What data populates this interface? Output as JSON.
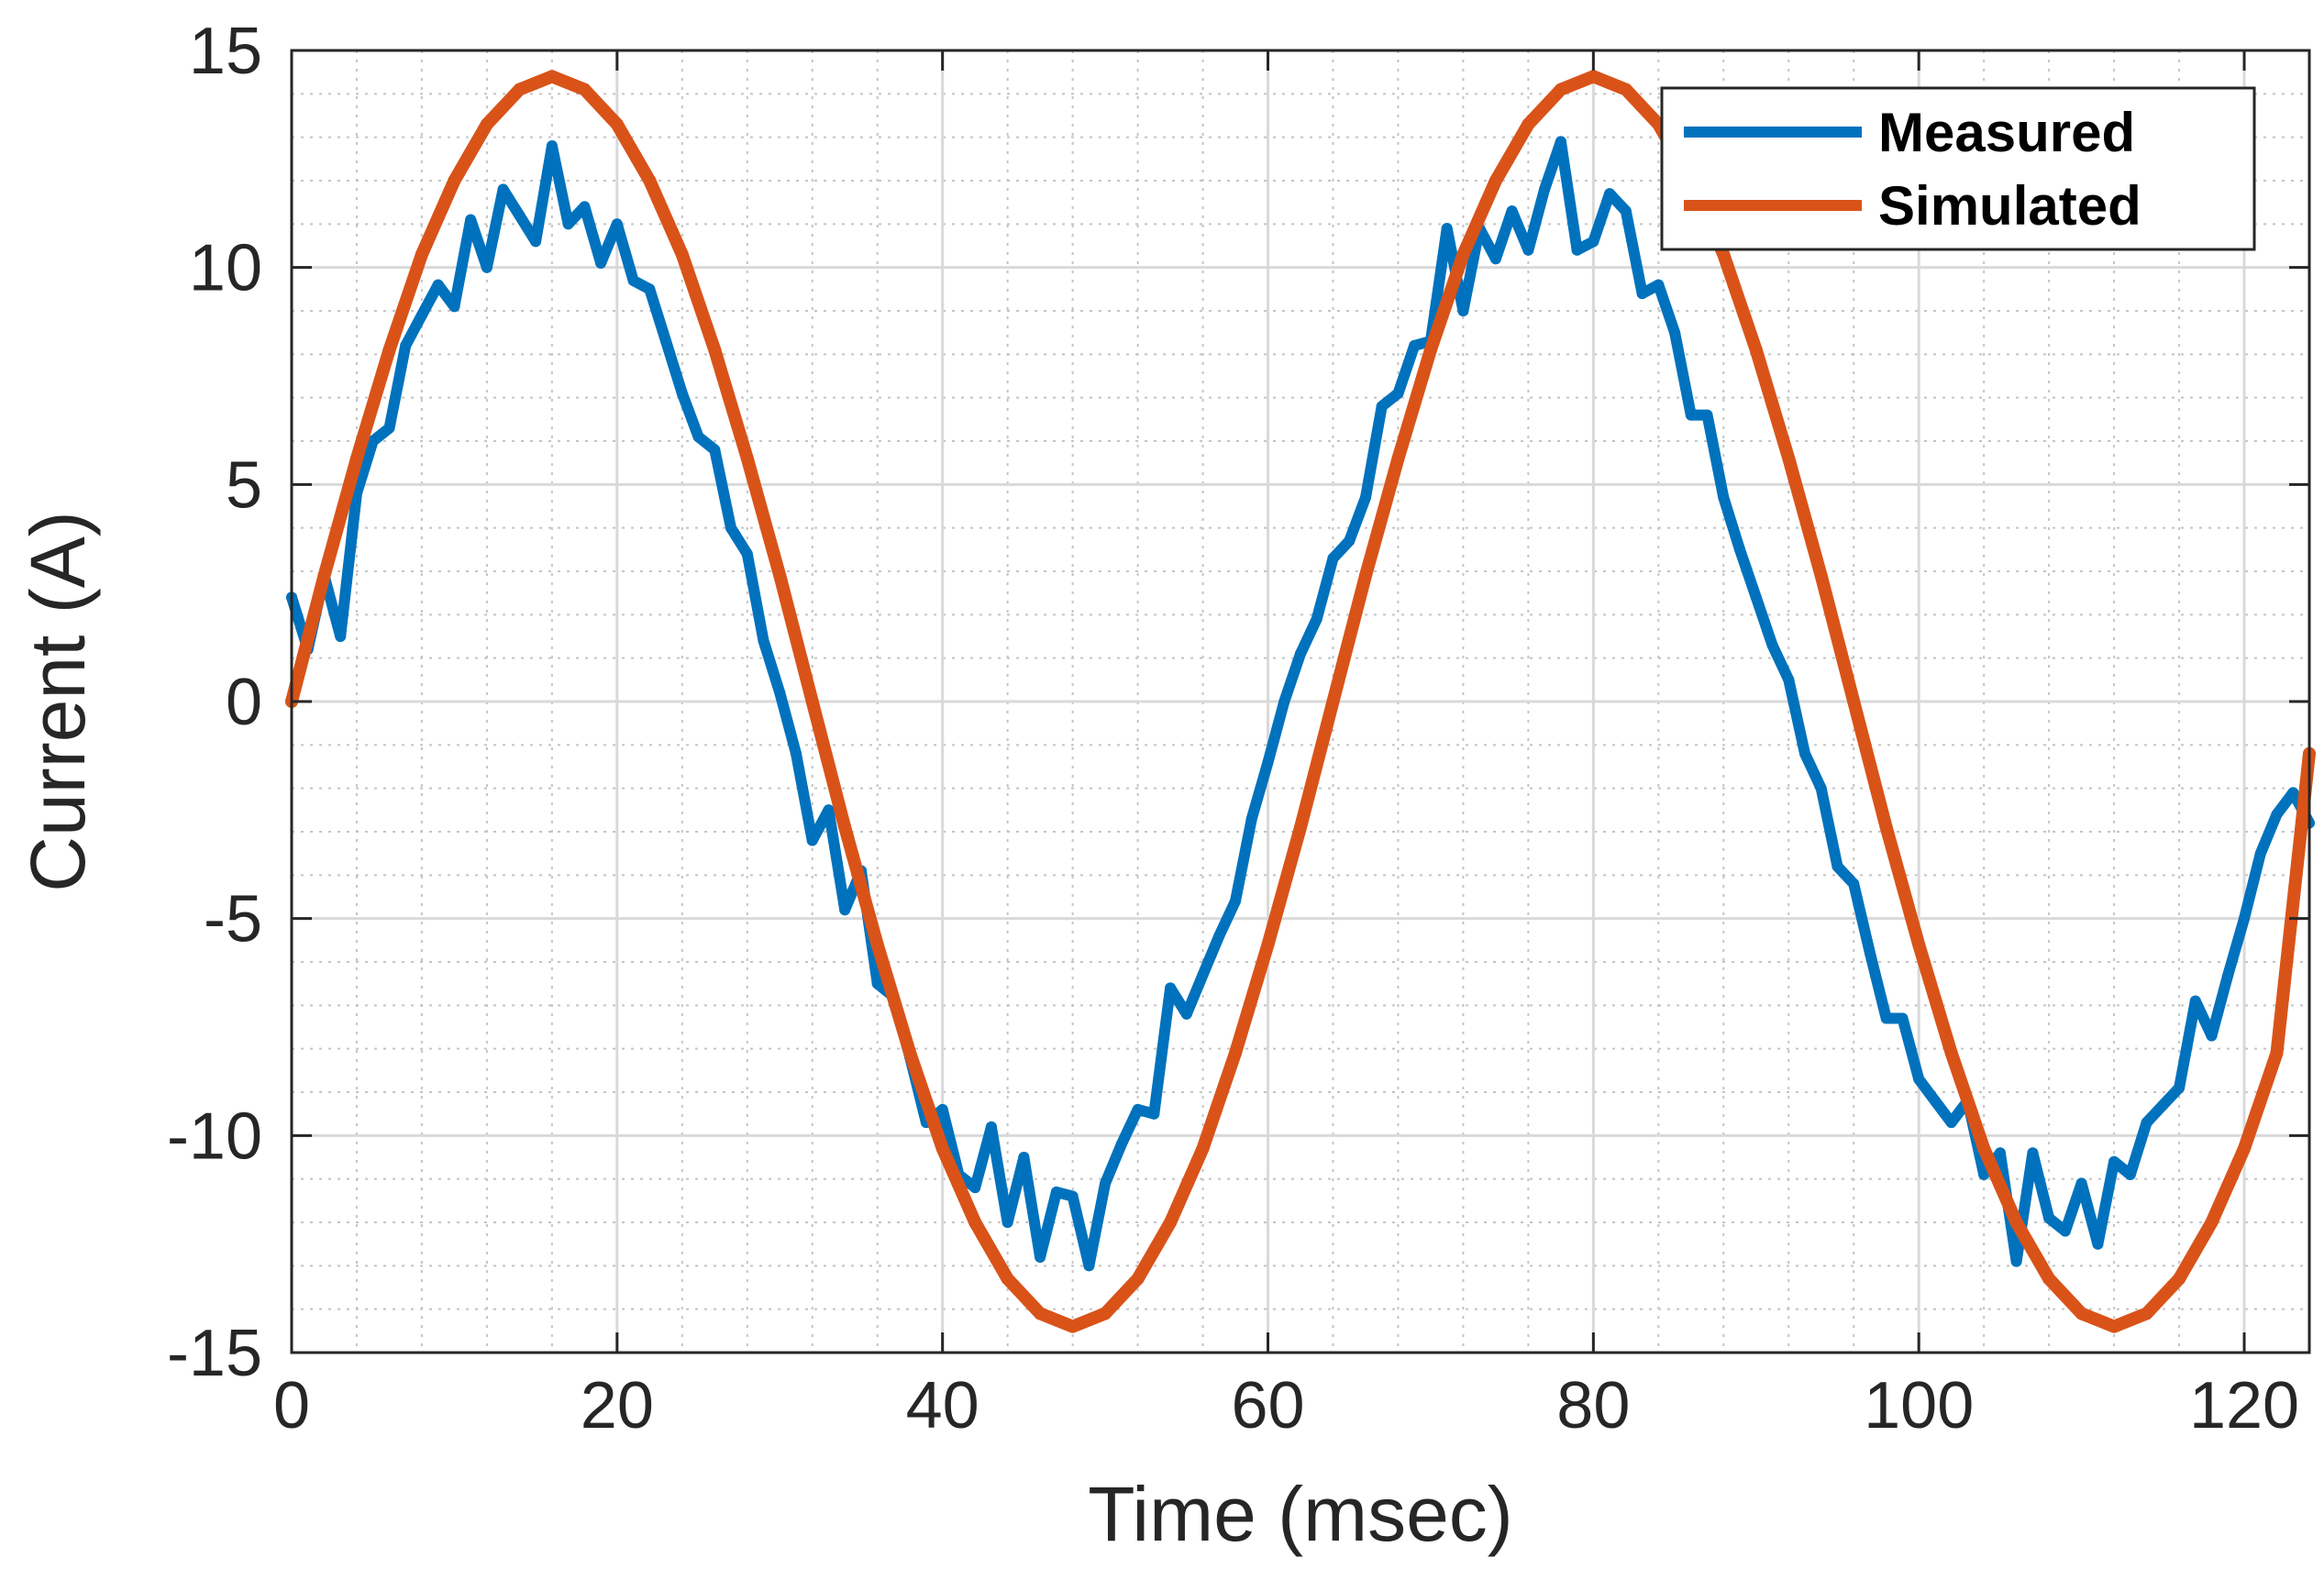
{
  "chart_data": {
    "type": "line",
    "xlabel": "Time (msec)",
    "ylabel": "Current (A)",
    "xlim": [
      0,
      124
    ],
    "ylim": [
      -15,
      15
    ],
    "xticks": [
      0,
      20,
      40,
      60,
      80,
      100,
      120
    ],
    "yticks": [
      -15,
      -10,
      -5,
      0,
      5,
      10,
      15
    ],
    "xtick_labels": [
      "0",
      "20",
      "40",
      "60",
      "80",
      "100",
      "120"
    ],
    "ytick_labels": [
      "-15",
      "-10",
      "-5",
      "0",
      "5",
      "10",
      "15"
    ],
    "grid": true,
    "minor_grid": true,
    "legend_position": "top-right",
    "series": [
      {
        "name": "Measured",
        "color": "#0072BD",
        "x": [
          0,
          1,
          2,
          3,
          4,
          5,
          6,
          7,
          8,
          9,
          10,
          11,
          12,
          13,
          14,
          15,
          16,
          17,
          18,
          19,
          20,
          21,
          22,
          23,
          24,
          25,
          26,
          27,
          28,
          29,
          30,
          31,
          32,
          33,
          34,
          35,
          36,
          37,
          38,
          39,
          40,
          41,
          42,
          43,
          44,
          45,
          46,
          47,
          48,
          49,
          50,
          51,
          52,
          53,
          54,
          55,
          56,
          57,
          58,
          59,
          60,
          61,
          62,
          63,
          64,
          65,
          66,
          67,
          68,
          69,
          70,
          71,
          72,
          73,
          74,
          75,
          76,
          77,
          78,
          79,
          80,
          81,
          82,
          83,
          84,
          85,
          86,
          87,
          88,
          89,
          90,
          91,
          92,
          93,
          94,
          95,
          96,
          97,
          98,
          99,
          100,
          101,
          102,
          103,
          104,
          105,
          106,
          107,
          108,
          109,
          110,
          111,
          112,
          113,
          114,
          115,
          116,
          117,
          118,
          119,
          120,
          121,
          122,
          123,
          124
        ],
        "values": [
          2.4,
          1.2,
          2.9,
          1.5,
          4.8,
          6.0,
          6.3,
          8.2,
          8.9,
          9.6,
          9.1,
          11.1,
          10.0,
          11.8,
          11.2,
          10.6,
          12.8,
          11.0,
          11.4,
          10.1,
          11.0,
          9.7,
          9.5,
          8.3,
          7.1,
          6.1,
          5.8,
          4.0,
          3.4,
          1.4,
          0.2,
          -1.2,
          -3.2,
          -2.5,
          -4.8,
          -3.9,
          -6.5,
          -6.8,
          -8.2,
          -9.7,
          -9.4,
          -10.9,
          -11.2,
          -9.8,
          -12.0,
          -10.5,
          -12.8,
          -11.3,
          -11.4,
          -13.0,
          -11.1,
          -10.2,
          -9.4,
          -9.5,
          -6.6,
          -7.2,
          -6.3,
          -5.4,
          -4.6,
          -2.7,
          -1.4,
          0.0,
          1.1,
          1.9,
          3.3,
          3.7,
          4.7,
          6.8,
          7.1,
          8.2,
          8.3,
          10.9,
          9.0,
          10.9,
          10.2,
          11.3,
          10.4,
          11.8,
          12.9,
          10.4,
          10.6,
          11.7,
          11.3,
          9.4,
          9.6,
          8.5,
          6.6,
          6.6,
          4.7,
          3.5,
          2.4,
          1.3,
          0.5,
          -1.2,
          -2.0,
          -3.8,
          -4.2,
          -5.8,
          -7.3,
          -7.3,
          -8.7,
          -9.2,
          -9.7,
          -9.2,
          -10.9,
          -10.4,
          -12.9,
          -10.4,
          -11.9,
          -12.2,
          -11.1,
          -12.5,
          -10.6,
          -10.9,
          -9.7,
          -9.3,
          -8.9,
          -6.9,
          -7.7,
          -6.3,
          -5.0,
          -3.5,
          -2.6,
          -2.1,
          -2.8
        ]
      },
      {
        "name": "Simulated",
        "color": "#D95319",
        "x": [
          0,
          2,
          4,
          6,
          8,
          10,
          12,
          14,
          16,
          18,
          20,
          22,
          24,
          26,
          28,
          30,
          32,
          34,
          36,
          38,
          40,
          42,
          44,
          46,
          48,
          50,
          52,
          54,
          56,
          58,
          60,
          62,
          64,
          66,
          68,
          70,
          72,
          74,
          76,
          78,
          80,
          82,
          84,
          86,
          88,
          90,
          92,
          94,
          96,
          98,
          100,
          102,
          104,
          106,
          108,
          110,
          112,
          114,
          116,
          118,
          120,
          122,
          124
        ],
        "values": [
          0.0,
          2.9,
          5.6,
          8.1,
          10.3,
          12.0,
          13.3,
          14.1,
          14.4,
          14.1,
          13.3,
          12.0,
          10.3,
          8.1,
          5.6,
          2.9,
          0.0,
          -2.9,
          -5.6,
          -8.1,
          -10.3,
          -12.0,
          -13.3,
          -14.1,
          -14.4,
          -14.1,
          -13.3,
          -12.0,
          -10.3,
          -8.1,
          -5.6,
          -2.9,
          0.0,
          2.9,
          5.6,
          8.1,
          10.3,
          12.0,
          13.3,
          14.1,
          14.4,
          14.1,
          13.3,
          12.0,
          10.3,
          8.1,
          5.6,
          2.9,
          0.0,
          -2.9,
          -5.6,
          -8.1,
          -10.3,
          -12.0,
          -13.3,
          -14.1,
          -14.4,
          -14.1,
          -13.3,
          -12.0,
          -10.3,
          -8.1,
          -1.2
        ]
      }
    ]
  }
}
